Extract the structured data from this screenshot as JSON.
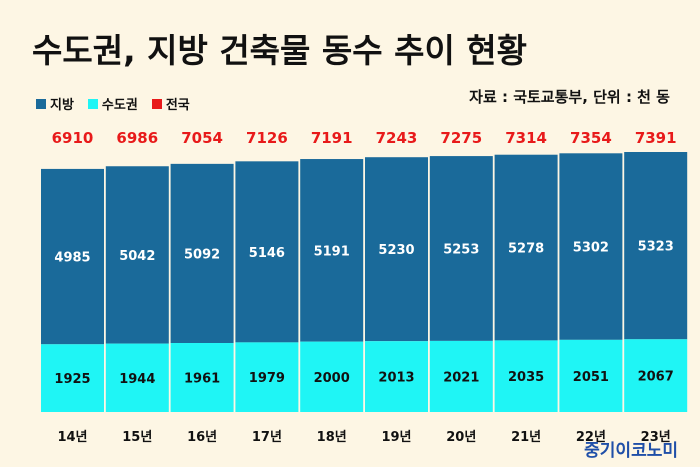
{
  "title": "수도권, 지방 건축물 동수 추이 현황",
  "source": "자료 : 국토교통부, 단위 : 천 동",
  "watermark": "중기이코노미",
  "legend": [
    {
      "name": "지방",
      "color": "#1a6a9a"
    },
    {
      "name": "수도권",
      "color": "#1ff5f5"
    },
    {
      "name": "전국",
      "color": "#e81a1a"
    }
  ],
  "chart_data": {
    "type": "bar",
    "stacked": true,
    "categories": [
      "14년",
      "15년",
      "16년",
      "17년",
      "18년",
      "19년",
      "20년",
      "21년",
      "22년",
      "23년"
    ],
    "series": [
      {
        "name": "수도권",
        "values": [
          1925,
          1944,
          1961,
          1979,
          2000,
          2013,
          2021,
          2035,
          2051,
          2067
        ],
        "color": "#1ff5f5"
      },
      {
        "name": "지방",
        "values": [
          4985,
          5042,
          5092,
          5146,
          5191,
          5230,
          5253,
          5278,
          5302,
          5323
        ],
        "color": "#1a6a9a"
      }
    ],
    "totals": {
      "name": "전국",
      "values": [
        6910,
        6986,
        7054,
        7126,
        7191,
        7243,
        7275,
        7314,
        7354,
        7391
      ],
      "color": "#e81a1a"
    },
    "data_labels": true,
    "legend_position": "top-left",
    "grid": false
  }
}
